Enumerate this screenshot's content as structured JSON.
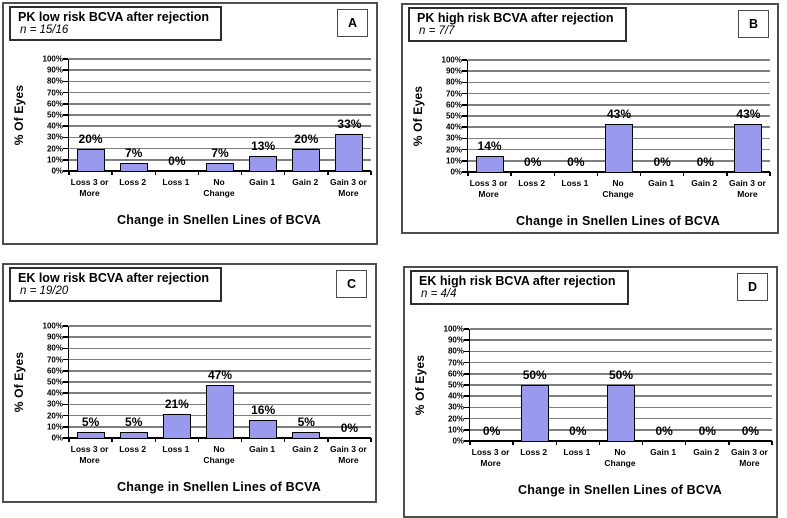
{
  "chart_data": [
    {
      "type": "bar",
      "panel_letter": "A",
      "title": "PK low risk BCVA after rejection",
      "n_label": "n = 15/16",
      "xlabel": "Change in Snellen Lines of BCVA",
      "ylabel": "% Of Eyes",
      "categories": [
        "Loss 3 or More",
        "Loss 2",
        "Loss 1",
        "No Change",
        "Gain 1",
        "Gain 2",
        "Gain 3 or More"
      ],
      "values": [
        20,
        7,
        0,
        7,
        13,
        20,
        33
      ],
      "value_labels": [
        "20%",
        "7%",
        "0%",
        "7%",
        "13%",
        "20%",
        "33%"
      ],
      "ylim": [
        0,
        100
      ],
      "ytick_step": 10,
      "grid": true,
      "legend": false
    },
    {
      "type": "bar",
      "panel_letter": "B",
      "title": "PK high risk BCVA after rejection",
      "n_label": "n = 7/7",
      "xlabel": "Change in Snellen Lines of BCVA",
      "ylabel": "% Of Eyes",
      "categories": [
        "Loss 3 or More",
        "Loss 2",
        "Loss 1",
        "No Change",
        "Gain 1",
        "Gain 2",
        "Gain 3 or More"
      ],
      "values": [
        14,
        0,
        0,
        43,
        0,
        0,
        43
      ],
      "value_labels": [
        "14%",
        "0%",
        "0%",
        "43%",
        "0%",
        "0%",
        "43%"
      ],
      "ylim": [
        0,
        100
      ],
      "ytick_step": 10,
      "grid": true,
      "legend": false
    },
    {
      "type": "bar",
      "panel_letter": "C",
      "title": "EK low risk BCVA after rejection",
      "n_label": "n = 19/20",
      "xlabel": "Change in Snellen Lines of BCVA",
      "ylabel": "% Of Eyes",
      "categories": [
        "Loss 3 or More",
        "Loss 2",
        "Loss 1",
        "No Change",
        "Gain 1",
        "Gain 2",
        "Gain 3 or More"
      ],
      "values": [
        5,
        5,
        21,
        47,
        16,
        5,
        0
      ],
      "value_labels": [
        "5%",
        "5%",
        "21%",
        "47%",
        "16%",
        "5%",
        "0%"
      ],
      "ylim": [
        0,
        100
      ],
      "ytick_step": 10,
      "grid": true,
      "legend": false
    },
    {
      "type": "bar",
      "panel_letter": "D",
      "title": "EK high risk BCVA after rejection",
      "n_label": "n = 4/4",
      "xlabel": "Change in Snellen Lines of BCVA",
      "ylabel": "% Of Eyes",
      "categories": [
        "Loss 3 or More",
        "Loss 2",
        "Loss 1",
        "No Change",
        "Gain 1",
        "Gain 2",
        "Gain 3 or More"
      ],
      "values": [
        0,
        50,
        0,
        50,
        0,
        0,
        0
      ],
      "value_labels": [
        "0%",
        "50%",
        "0%",
        "50%",
        "0%",
        "0%",
        "0%"
      ],
      "ylim": [
        0,
        100
      ],
      "ytick_step": 10,
      "grid": true,
      "legend": false
    }
  ],
  "shared_axis": {
    "ytick_labels": [
      "100%",
      "90%",
      "80%",
      "70%",
      "60%",
      "50%",
      "40%",
      "30%",
      "20%",
      "10%",
      "0%"
    ],
    "category_lines": [
      [
        "Loss 3 or",
        "More"
      ],
      [
        "Loss 2"
      ],
      [
        "Loss 1"
      ],
      [
        "No",
        "Change"
      ],
      [
        "Gain 1"
      ],
      [
        "Gain 2"
      ],
      [
        "Gain 3 or",
        "More"
      ]
    ]
  },
  "colors": {
    "bar_fill": "#9999EE",
    "bar_border": "#000000",
    "gridline": "#7F7F7F",
    "axis": "#000000"
  }
}
